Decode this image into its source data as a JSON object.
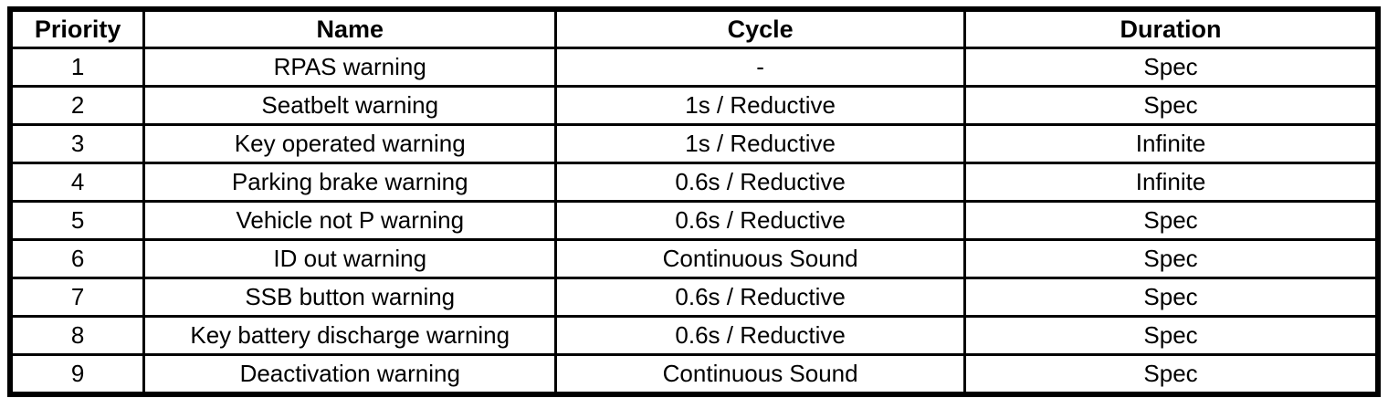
{
  "page": {
    "background_color": "#ffffff",
    "border_color": "#000000",
    "text_color": "#000000"
  },
  "table": {
    "columns": [
      {
        "key": "priority",
        "label": "Priority"
      },
      {
        "key": "name",
        "label": "Name"
      },
      {
        "key": "cycle",
        "label": "Cycle"
      },
      {
        "key": "duration",
        "label": "Duration"
      }
    ],
    "rows": [
      {
        "priority": "1",
        "name": "RPAS warning",
        "cycle": "-",
        "duration": "Spec"
      },
      {
        "priority": "2",
        "name": "Seatbelt warning",
        "cycle": "1s / Reductive",
        "duration": "Spec"
      },
      {
        "priority": "3",
        "name": "Key operated warning",
        "cycle": "1s / Reductive",
        "duration": "Infinite"
      },
      {
        "priority": "4",
        "name": "Parking brake warning",
        "cycle": "0.6s / Reductive",
        "duration": "Infinite"
      },
      {
        "priority": "5",
        "name": "Vehicle not P warning",
        "cycle": "0.6s / Reductive",
        "duration": "Spec"
      },
      {
        "priority": "6",
        "name": "ID out warning",
        "cycle": "Continuous Sound",
        "duration": "Spec"
      },
      {
        "priority": "7",
        "name": "SSB button warning",
        "cycle": "0.6s / Reductive",
        "duration": "Spec"
      },
      {
        "priority": "8",
        "name": "Key battery discharge warning",
        "cycle": "0.6s / Reductive",
        "duration": "Spec"
      },
      {
        "priority": "9",
        "name": "Deactivation warning",
        "cycle": "Continuous Sound",
        "duration": "Spec"
      }
    ]
  }
}
